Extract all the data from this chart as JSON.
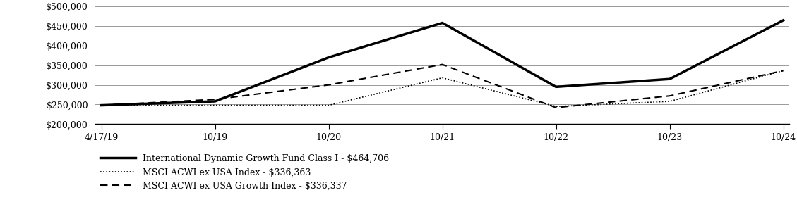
{
  "title": "",
  "x_labels": [
    "4/17/19",
    "10/19",
    "10/20",
    "10/21",
    "10/22",
    "10/23",
    "10/24"
  ],
  "x_positions": [
    0,
    1,
    2,
    3,
    4,
    5,
    6
  ],
  "series": [
    {
      "name": "International Dynamic Growth Fund Class I - $464,706",
      "values": [
        248000,
        258000,
        370000,
        458000,
        295000,
        315000,
        464706
      ],
      "color": "#000000",
      "linewidth": 2.5,
      "linestyle": "solid"
    },
    {
      "name": "MSCI ACWI ex USA Index - $336,363",
      "values": [
        248000,
        248000,
        248000,
        318000,
        245000,
        258000,
        336363
      ],
      "color": "#000000",
      "linewidth": 1.2,
      "linestyle": "dotted"
    },
    {
      "name": "MSCI ACWI ex USA Growth Index - $336,337",
      "values": [
        248000,
        263000,
        300000,
        352000,
        242000,
        272000,
        336337
      ],
      "color": "#000000",
      "linewidth": 1.5,
      "linestyle": "dashed"
    }
  ],
  "ylim": [
    200000,
    500000
  ],
  "yticks": [
    200000,
    250000,
    300000,
    350000,
    400000,
    450000,
    500000
  ],
  "ytick_labels": [
    "$200,000",
    "$250,000",
    "$300,000",
    "$350,000",
    "$400,000",
    "$450,000",
    "$500,000"
  ],
  "background_color": "#ffffff",
  "grid_color": "#999999",
  "legend_fontsize": 9,
  "tick_fontsize": 9,
  "figsize": [
    11.29,
    3.04
  ],
  "dpi": 100
}
